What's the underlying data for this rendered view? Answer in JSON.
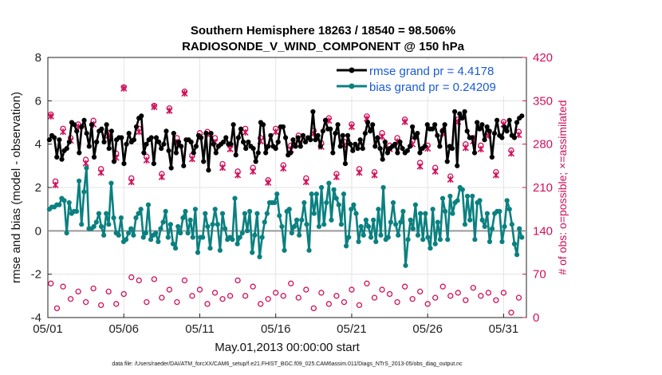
{
  "chart_data": {
    "type": "line",
    "title": "Southern Hemisphere 18263 / 18540 = 98.506%",
    "subtitle": "RADIOSONDE_V_WIND_COMPONENT @ 150 hPa",
    "xlabel": "May.01,2013 00:00:00 start",
    "ylabel": "rmse and bias (model - observation)",
    "ylabel_right": "# of obs: o=possible; ×=assimilated",
    "x_ticks": [
      "05/01",
      "05/06",
      "05/11",
      "05/16",
      "05/21",
      "05/26",
      "05/31"
    ],
    "x_tick_days": [
      0,
      5,
      10,
      15,
      20,
      25,
      30
    ],
    "xlim": [
      0,
      31.5
    ],
    "ylim": [
      -4,
      8
    ],
    "y_ticks": [
      "-4",
      "-2",
      "0",
      "2",
      "4",
      "6",
      "8"
    ],
    "ylim_right": [
      0,
      420
    ],
    "y_ticks_right": [
      "0",
      "70",
      "140",
      "210",
      "280",
      "350",
      "420"
    ],
    "grid": true,
    "legend_position": "top-right",
    "colors": {
      "rmse": "#000000",
      "bias": "#0b8080",
      "obs": "#d0105a",
      "zero": "#999999",
      "legend_text": "#1a5bd6"
    },
    "series": [
      {
        "name": "rmse",
        "legend": "rmse grand pr = 4.4178",
        "color": "#000000",
        "values": [
          4.2,
          4.4,
          4.3,
          3.4,
          4.2,
          3.3,
          3.7,
          3.8,
          4.1,
          5.0,
          4.9,
          4.6,
          3.6,
          4.8,
          5.1,
          4.5,
          3.9,
          4.9,
          3.4,
          4.1,
          4.6,
          4.7,
          4.1,
          4.9,
          3.8,
          4.6,
          3.2,
          4.2,
          4.3,
          4.3,
          3.1,
          4.0,
          4.5,
          4.1,
          4.2,
          4.8,
          5.2,
          5.3,
          3.6,
          4.0,
          4.2,
          4.3,
          3.1,
          4.3,
          4.1,
          3.8,
          4.0,
          4.6,
          3.7,
          2.9,
          4.5,
          3.6,
          4.1,
          3.9,
          3.0,
          4.2,
          4.2,
          4.1,
          3.6,
          3.9,
          4.4,
          4.3,
          3.2,
          4.5,
          2.8,
          4.5,
          4.0,
          3.6,
          3.9,
          4.0,
          4.1,
          4.3,
          4.0,
          4.0,
          4.9,
          3.5,
          4.3,
          4.7,
          4.1,
          3.8,
          4.1,
          3.9,
          3.8,
          3.2,
          3.6,
          5.0,
          4.9,
          3.6,
          3.9,
          4.4,
          3.9,
          3.8,
          4.1,
          4.8,
          4.8,
          4.3,
          3.5,
          3.6,
          4.2,
          3.9,
          4.3,
          3.9,
          4.4,
          4.1,
          4.3,
          4.2,
          5.5,
          4.2,
          4.4,
          3.9,
          4.6,
          5.1,
          4.7,
          4.7,
          3.6,
          4.5,
          4.9,
          3.9,
          4.4,
          3.1,
          4.4,
          4.0,
          3.7,
          4.0,
          3.8,
          4.2,
          3.8,
          4.5,
          5.0,
          4.6,
          4.9,
          3.9,
          4.3,
          3.8,
          3.3,
          4.1,
          3.6,
          3.8,
          3.9,
          4.0,
          3.6,
          4.1,
          3.8,
          3.6,
          3.7,
          3.9,
          4.8,
          4.3,
          4.5,
          3.6,
          3.8,
          3.9,
          4.9,
          4.7,
          4.7,
          4.9,
          4.4,
          3.9,
          4.6,
          4.9,
          3.2,
          3.9,
          3.8,
          5.5,
          3.0,
          5.4,
          5.2,
          5.5,
          4.6,
          4.3,
          4.3,
          3.6,
          5.0,
          4.7,
          4.9,
          4.2,
          4.8,
          4.6,
          3.4,
          4.5,
          5.1,
          4.4,
          4.3,
          4.8,
          4.6,
          5.1,
          4.4,
          4.3,
          5.0,
          5.2,
          5.3
        ]
      },
      {
        "name": "bias",
        "legend": "bias grand pr = 0.24209",
        "color": "#0b8080",
        "values": [
          1.0,
          1.1,
          1.1,
          1.2,
          1.2,
          1.5,
          1.4,
          -0.1,
          1.3,
          0.8,
          0.9,
          0.9,
          2.3,
          0.3,
          1.8,
          2.9,
          0.1,
          0.1,
          0.2,
          0.4,
          0.8,
          0.2,
          -0.2,
          0.8,
          0.3,
          2.2,
          0.6,
          -0.1,
          -0.2,
          0.6,
          -0.5,
          -0.4,
          -0.1,
          0.1,
          -0.2,
          0.6,
          0.8,
          1.0,
          -0.3,
          -0.1,
          1.2,
          -0.4,
          -0.2,
          -0.1,
          -0.5,
          0.1,
          0.4,
          0.9,
          -0.3,
          0.3,
          -0.6,
          -0.8,
          0.2,
          -0.1,
          0.6,
          0.9,
          -0.1,
          0.5,
          -0.3,
          1.0,
          -1.0,
          -0.3,
          -0.3,
          0.8,
          0.2,
          -0.8,
          0.3,
          1.0,
          0.3,
          -0.9,
          0.8,
          0.1,
          -0.4,
          -0.3,
          -0.4,
          1.5,
          -0.6,
          -0.3,
          -0.1,
          0.8,
          0.0,
          0.9,
          -1.0,
          -0.2,
          0.8,
          -1.2,
          -0.3,
          0.4,
          0.8,
          1.3,
          1.3,
          1.3,
          1.7,
          0.7,
          0.2,
          -0.9,
          0.9,
          1.0,
          -0.1,
          0.2,
          0.5,
          -0.2,
          0.5,
          1.3,
          0.3,
          -0.9,
          1.7,
          0.8,
          1.7,
          0.2,
          2.0,
          0.3,
          1.3,
          2.2,
          0.5,
          1.9,
          1.5,
          1.2,
          0.3,
          1.7,
          -0.7,
          -0.3,
          1.0,
          1.2,
          0.8,
          -0.5,
          0.2,
          -0.2,
          0.5,
          0.2,
          -0.3,
          0.5,
          -0.5,
          1.0,
          -0.2,
          2.0,
          -0.4,
          -0.3,
          0.4,
          1.3,
          0.3,
          -0.2,
          0.4,
          0.9,
          -1.6,
          -0.4,
          0.5,
          0.1,
          1.2,
          -0.2,
          0.8,
          -0.4,
          0.8,
          -0.3,
          -0.8,
          1.0,
          -0.6,
          0.4,
          -0.4,
          1.5,
          0.9,
          -0.4,
          1.6,
          0.8,
          1.3,
          1.4,
          2.0,
          1.9,
          0.3,
          1.6,
          0.5,
          1.6,
          -0.4,
          1.3,
          1.4,
          0.5,
          0.2,
          0.8,
          -0.5,
          0.1,
          0.8,
          0.9,
          0.9,
          -0.5,
          0.2,
          1.4,
          1.0,
          0.3,
          -0.6,
          -1.1,
          0.1,
          -0.3
        ]
      },
      {
        "name": "obs possible",
        "marker": "o",
        "axis": "right",
        "color": "#d0105a",
        "x": [
          0.2,
          0.5,
          1.0,
          1.5,
          2.0,
          2.5,
          3.0,
          3.5,
          4.0,
          4.5,
          5.0,
          5.5,
          6.0,
          6.5,
          7.0,
          7.5,
          8.0,
          8.5,
          9.0,
          9.5,
          10.0,
          10.5,
          11.0,
          11.5,
          12.0,
          12.5,
          13.0,
          13.5,
          14.0,
          14.5,
          15.0,
          15.5,
          16.0,
          16.5,
          17.0,
          17.5,
          18.0,
          18.5,
          19.0,
          19.5,
          20.0,
          20.5,
          21.0,
          21.5,
          22.0,
          22.5,
          23.0,
          23.5,
          24.0,
          24.5,
          25.0,
          25.5,
          26.0,
          26.5,
          27.0,
          27.5,
          28.0,
          28.5,
          29.0,
          29.5,
          30.0,
          30.5,
          31.0
        ],
        "values": [
          328,
          220,
          305,
          290,
          312,
          255,
          318,
          240,
          298,
          265,
          372,
          225,
          305,
          260,
          342,
          232,
          338,
          290,
          365,
          262,
          298,
          300,
          290,
          248,
          280,
          236,
          305,
          242,
          290,
          222,
          305,
          246,
          278,
          294,
          225,
          302,
          282,
          322,
          232,
          284,
          312,
          240,
          325,
          235,
          298,
          278,
          290,
          320,
          285,
          250,
          278,
          242,
          302,
          228,
          320,
          280,
          290,
          278,
          298,
          235,
          316,
          270,
          300
        ]
      },
      {
        "name": "obs assimilated",
        "marker": "x",
        "axis": "right",
        "color": "#d0105a",
        "x": [
          0.2,
          0.5,
          1.0,
          1.5,
          2.0,
          2.5,
          3.0,
          3.5,
          4.0,
          4.5,
          5.0,
          5.5,
          6.0,
          6.5,
          7.0,
          7.5,
          8.0,
          8.5,
          9.0,
          9.5,
          10.0,
          10.5,
          11.0,
          11.5,
          12.0,
          12.5,
          13.0,
          13.5,
          14.0,
          14.5,
          15.0,
          15.5,
          16.0,
          16.5,
          17.0,
          17.5,
          18.0,
          18.5,
          19.0,
          19.5,
          20.0,
          20.5,
          21.0,
          21.5,
          22.0,
          22.5,
          23.0,
          23.5,
          24.0,
          24.5,
          25.0,
          25.5,
          26.0,
          26.5,
          27.0,
          27.5,
          28.0,
          28.5,
          29.0,
          29.5,
          30.0,
          30.5,
          31.0
        ],
        "values": [
          325,
          214,
          300,
          286,
          308,
          249,
          312,
          234,
          294,
          258,
          370,
          219,
          300,
          254,
          340,
          227,
          334,
          283,
          362,
          256,
          292,
          296,
          283,
          242,
          272,
          230,
          299,
          236,
          285,
          218,
          300,
          241,
          271,
          288,
          219,
          297,
          276,
          318,
          227,
          278,
          308,
          234,
          321,
          230,
          292,
          272,
          284,
          316,
          280,
          244,
          273,
          236,
          297,
          223,
          316,
          274,
          285,
          272,
          294,
          230,
          312,
          265,
          295
        ]
      },
      {
        "name": "obs low possible",
        "marker": "o",
        "axis": "right",
        "color": "#d0105a",
        "x": [
          0.2,
          0.6,
          1.0,
          1.5,
          2.0,
          2.5,
          3.0,
          3.5,
          4.0,
          4.5,
          5.0,
          5.5,
          6.0,
          6.5,
          7.0,
          7.5,
          8.0,
          8.5,
          9.0,
          9.5,
          10.0,
          10.5,
          11.0,
          11.5,
          12.0,
          12.5,
          13.0,
          13.5,
          14.0,
          14.5,
          15.0,
          15.5,
          16.0,
          16.5,
          17.0,
          17.5,
          18.0,
          18.5,
          19.0,
          19.5,
          20.0,
          20.5,
          21.0,
          21.5,
          22.0,
          22.5,
          23.0,
          23.5,
          24.0,
          24.5,
          25.0,
          25.5,
          26.0,
          26.5,
          27.0,
          27.5,
          28.0,
          28.5,
          29.0,
          29.5,
          30.0,
          30.5,
          31.0
        ],
        "values": [
          55,
          15,
          50,
          30,
          42,
          25,
          47,
          20,
          42,
          22,
          38,
          65,
          60,
          25,
          62,
          32,
          45,
          25,
          60,
          35,
          45,
          22,
          40,
          30,
          35,
          60,
          35,
          50,
          22,
          30,
          40,
          35,
          55,
          32,
          45,
          15,
          40,
          22,
          35,
          25,
          45,
          20,
          55,
          32,
          45,
          38,
          25,
          50,
          30,
          42,
          22,
          32,
          50,
          35,
          40,
          28,
          48,
          35,
          40,
          28,
          40,
          8,
          32
        ]
      }
    ]
  },
  "footer": "data file: /Users/raeder/DAI/ATM_forcXX/CAM6_setup/f.e21.FHIST_BGC.f09_025.CAM6assim.011/Diags_NTrS_2013-05/obs_diag_output.nc"
}
